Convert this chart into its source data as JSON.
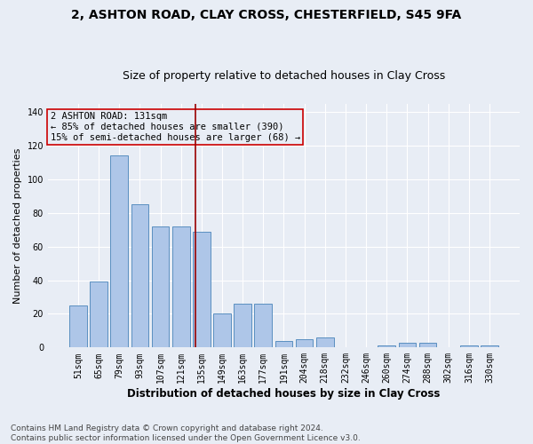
{
  "title1": "2, ASHTON ROAD, CLAY CROSS, CHESTERFIELD, S45 9FA",
  "title2": "Size of property relative to detached houses in Clay Cross",
  "xlabel": "Distribution of detached houses by size in Clay Cross",
  "ylabel": "Number of detached properties",
  "bar_labels": [
    "51sqm",
    "65sqm",
    "79sqm",
    "93sqm",
    "107sqm",
    "121sqm",
    "135sqm",
    "149sqm",
    "163sqm",
    "177sqm",
    "191sqm",
    "204sqm",
    "218sqm",
    "232sqm",
    "246sqm",
    "260sqm",
    "274sqm",
    "288sqm",
    "302sqm",
    "316sqm",
    "330sqm"
  ],
  "bar_values": [
    25,
    39,
    114,
    85,
    72,
    72,
    69,
    20,
    26,
    26,
    4,
    5,
    6,
    0,
    0,
    1,
    3,
    3,
    0,
    1,
    1
  ],
  "bar_color": "#aec6e8",
  "bar_edge_color": "#5a8fc0",
  "background_color": "#e8edf5",
  "grid_color": "#ffffff",
  "annotation_box_text": "2 ASHTON ROAD: 131sqm\n← 85% of detached houses are smaller (390)\n15% of semi-detached houses are larger (68) →",
  "annotation_box_color": "#cc0000",
  "ylim": [
    0,
    145
  ],
  "yticks": [
    0,
    20,
    40,
    60,
    80,
    100,
    120,
    140
  ],
  "footnote": "Contains HM Land Registry data © Crown copyright and database right 2024.\nContains public sector information licensed under the Open Government Licence v3.0.",
  "title1_fontsize": 10,
  "title2_fontsize": 9,
  "xlabel_fontsize": 8.5,
  "ylabel_fontsize": 8,
  "tick_fontsize": 7,
  "annot_fontsize": 7.5,
  "footnote_fontsize": 6.5
}
